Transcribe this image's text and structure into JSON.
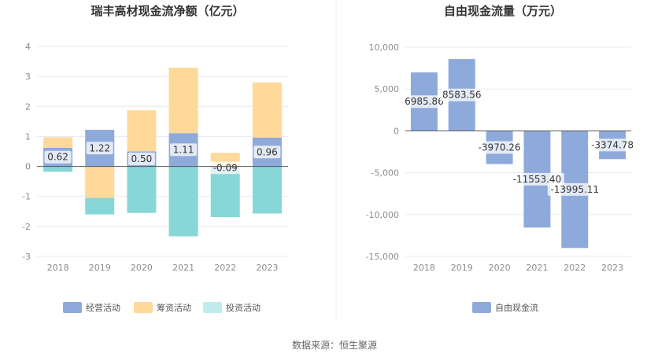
{
  "source_text": "数据来源：恒生聚源",
  "chart_data": [
    {
      "type": "bar",
      "stacked": true,
      "title": "瑞丰高材现金流净额（亿元）",
      "categories": [
        "2018",
        "2019",
        "2020",
        "2021",
        "2022",
        "2023"
      ],
      "ylim": [
        -3,
        4
      ],
      "yticks": [
        "4",
        "3",
        "2",
        "1",
        "0",
        "-1",
        "-2",
        "-3"
      ],
      "grid": true,
      "legend_position": "bottom",
      "series": [
        {
          "name": "经营活动",
          "color": "#8eaadb",
          "values": [
            0.62,
            1.22,
            0.5,
            1.11,
            -0.09,
            0.96
          ],
          "labels": [
            "0.62",
            "1.22",
            "0.50",
            "1.11",
            "-0.09",
            "0.96"
          ]
        },
        {
          "name": "筹资活动",
          "color": "#ffd99a",
          "values": [
            0.35,
            -1.05,
            1.37,
            2.18,
            0.45,
            1.84
          ]
        },
        {
          "name": "投资活动",
          "color": "#87d7d8",
          "legend_color": "#c2ebec",
          "values": [
            -0.18,
            -0.55,
            -1.55,
            -2.33,
            -1.6,
            -1.57
          ]
        }
      ]
    },
    {
      "type": "bar",
      "title": "自由现金流量（万元）",
      "categories": [
        "2018",
        "2019",
        "2020",
        "2021",
        "2022",
        "2023"
      ],
      "ylim": [
        -15000,
        10000
      ],
      "yticks": [
        "10,000",
        "5,000",
        "0",
        "-5,000",
        "-10,000",
        "-15,000"
      ],
      "grid": true,
      "legend_position": "bottom",
      "series": [
        {
          "name": "自由现金流",
          "color": "#8eaadb",
          "values": [
            6985.86,
            8583.56,
            -3970.26,
            -11553.4,
            -13995.11,
            -3374.78
          ],
          "labels": [
            "6985.86",
            "8583.56",
            "-3970.26",
            "-11553.40",
            "-13995.11",
            "-3374.78"
          ]
        }
      ]
    }
  ]
}
